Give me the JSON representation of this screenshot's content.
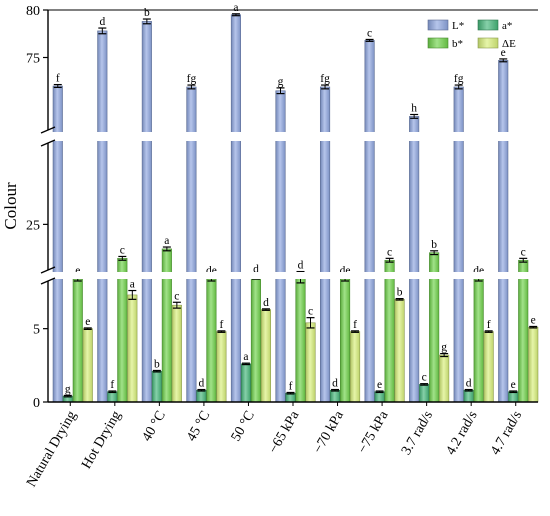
{
  "chart_data": {
    "type": "bar",
    "ylabel": "Colour",
    "y_axis_broken": true,
    "y_segments": [
      {
        "range": [
          0,
          9
        ],
        "ticks": [
          0,
          5
        ]
      },
      {
        "range": [
          22,
          30
        ],
        "ticks": [
          25
        ]
      },
      {
        "range": [
          66,
          80
        ],
        "ticks": [
          75,
          80
        ]
      }
    ],
    "legend_placement": "top-right",
    "categories": [
      "Natural Drying",
      "Hot Drying",
      "40 °C",
      "45 °C",
      "50 °C",
      "−65 kPa",
      "−70 kPa",
      "−75 kPa",
      "3.7 rad/s",
      "4.2 rad/s",
      "4.7 rad/s"
    ],
    "series": [
      {
        "name": "L*",
        "color": "#8ea6e0",
        "values": [
          72.0,
          77.8,
          78.8,
          71.9,
          79.5,
          71.5,
          71.9,
          76.8,
          68.8,
          71.9,
          74.7
        ],
        "errors": [
          0.15,
          0.3,
          0.25,
          0.2,
          0.1,
          0.3,
          0.2,
          0.1,
          0.2,
          0.2,
          0.15
        ],
        "letters": [
          "f",
          "d",
          "b",
          "fg",
          "a",
          "g",
          "fg",
          "c",
          "h",
          "fg",
          "e"
        ]
      },
      {
        "name": "a*",
        "color": "#45b77a",
        "values": [
          0.4,
          0.7,
          2.1,
          0.8,
          2.6,
          0.6,
          0.8,
          0.7,
          1.2,
          0.8,
          0.7
        ],
        "errors": [
          0.05,
          0.05,
          0.05,
          0.05,
          0.05,
          0.05,
          0.05,
          0.05,
          0.05,
          0.05,
          0.05
        ],
        "letters": [
          "g",
          "f",
          "b",
          "d",
          "a",
          "f",
          "d",
          "e",
          "c",
          "d",
          "e"
        ]
      },
      {
        "name": "b*",
        "color": "#6fd24a",
        "values": [
          22.1,
          23.2,
          23.7,
          22.1,
          22.2,
          22.2,
          22.1,
          23.1,
          23.5,
          22.1,
          23.1
        ],
        "errors": [
          0.1,
          0.1,
          0.1,
          0.1,
          0.1,
          0.3,
          0.1,
          0.1,
          0.1,
          0.1,
          0.1
        ],
        "letters": [
          "e",
          "c",
          "a",
          "de",
          "d",
          "d",
          "de",
          "c",
          "b",
          "de",
          "c"
        ]
      },
      {
        "name": "ΔE",
        "color": "#d8f07a",
        "values": [
          5.0,
          7.3,
          6.6,
          4.8,
          6.3,
          5.4,
          4.8,
          7.0,
          3.2,
          4.8,
          5.1
        ],
        "errors": [
          0.05,
          0.3,
          0.2,
          0.05,
          0.05,
          0.35,
          0.05,
          0.05,
          0.1,
          0.05,
          0.05
        ],
        "letters": [
          "e",
          "a",
          "c",
          "f",
          "d",
          "c",
          "f",
          "b",
          "g",
          "f",
          "e"
        ]
      }
    ]
  }
}
